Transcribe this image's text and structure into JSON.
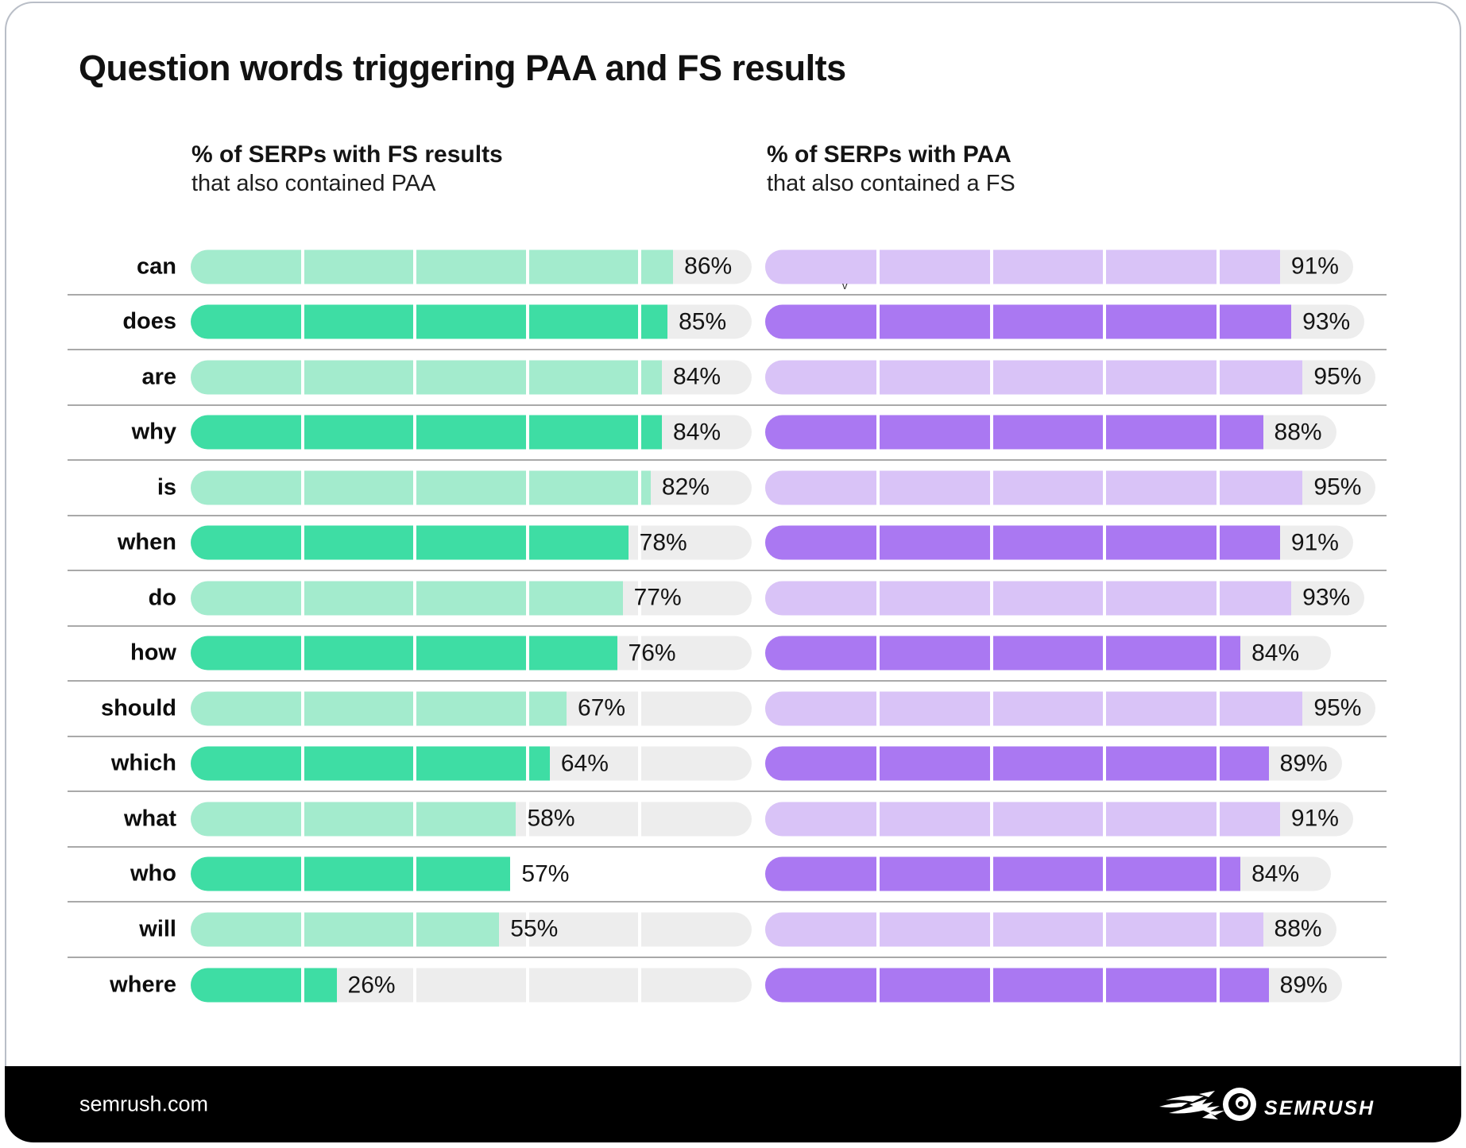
{
  "title": "Question words triggering PAA and FS results",
  "columns": {
    "left": {
      "title": "% of SERPs with FS results",
      "subtitle": "that also contained PAA"
    },
    "right": {
      "title": "% of SERPs with PAA",
      "subtitle": "that also contained a FS"
    }
  },
  "chart_data": {
    "type": "bar",
    "orientation": "horizontal",
    "value_format": "percent",
    "xlim": [
      0,
      100
    ],
    "segments_per_track": 5,
    "categories": [
      "can",
      "does",
      "are",
      "why",
      "is",
      "when",
      "do",
      "how",
      "should",
      "which",
      "what",
      "who",
      "will",
      "where"
    ],
    "series": [
      {
        "name": "% of SERPs with FS results that also contained PAA",
        "values": [
          86,
          85,
          84,
          84,
          82,
          78,
          77,
          76,
          67,
          64,
          58,
          57,
          55,
          26
        ]
      },
      {
        "name": "% of SERPs with PAA that also contained a FS",
        "values": [
          91,
          93,
          95,
          88,
          95,
          91,
          93,
          84,
          95,
          89,
          91,
          84,
          88,
          89
        ]
      }
    ],
    "style_notes": "rows alternate light/dark shades; white segment dividers every 20%; 'who' row left bar shown without gray remainder track",
    "legend_position": "none",
    "grid": "row separators only"
  },
  "colors": {
    "green_light": "#a3ebcd",
    "green_dark": "#3edda4",
    "purple_light": "#d9c3f7",
    "purple_dark": "#aa78f2",
    "track_gray": "#ededed",
    "separator_gray": "#a9a9a9",
    "footer_black": "#000000",
    "text_black": "#111111"
  },
  "artifact_mark": "v",
  "footer": {
    "site": "semrush.com",
    "logo_text": "semrush"
  }
}
